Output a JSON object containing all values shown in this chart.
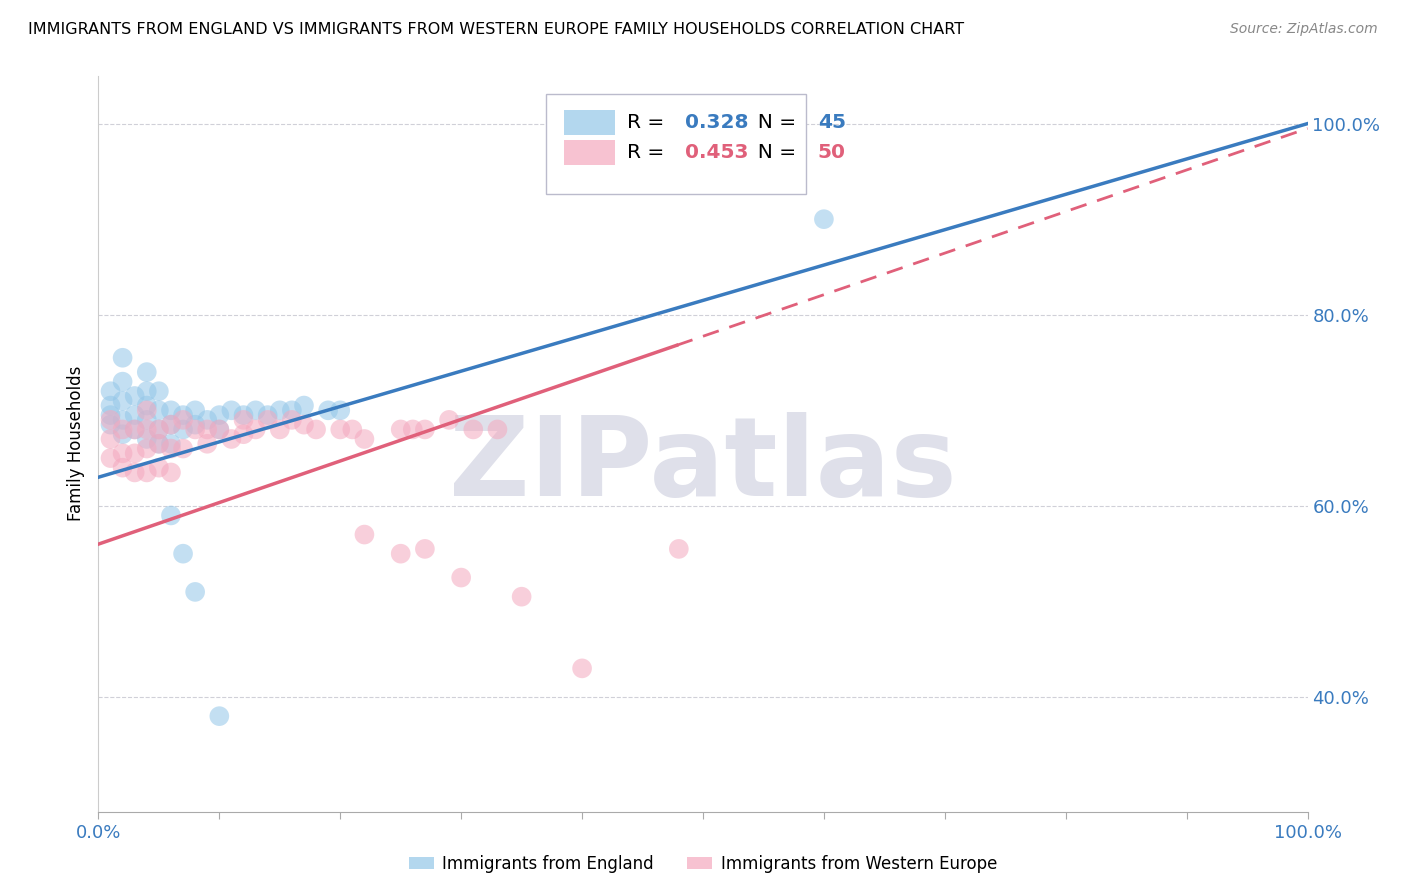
{
  "title": "IMMIGRANTS FROM ENGLAND VS IMMIGRANTS FROM WESTERN EUROPE FAMILY HOUSEHOLDS CORRELATION CHART",
  "source": "Source: ZipAtlas.com",
  "ylabel": "Family Households",
  "blue_R": 0.328,
  "blue_N": 45,
  "pink_R": 0.453,
  "pink_N": 50,
  "blue_color": "#93c6e8",
  "pink_color": "#f4a8be",
  "blue_line_color": "#3a7bbf",
  "pink_line_color": "#e0607a",
  "watermark_color": "#dfe0ea",
  "legend_label_blue": "Immigrants from England",
  "legend_label_pink": "Immigrants from Western Europe",
  "blue_scatter_x": [
    0.01,
    0.01,
    0.01,
    0.01,
    0.02,
    0.02,
    0.02,
    0.02,
    0.02,
    0.03,
    0.03,
    0.03,
    0.04,
    0.04,
    0.04,
    0.04,
    0.04,
    0.05,
    0.05,
    0.05,
    0.05,
    0.06,
    0.06,
    0.06,
    0.07,
    0.07,
    0.08,
    0.08,
    0.09,
    0.1,
    0.1,
    0.11,
    0.12,
    0.13,
    0.14,
    0.15,
    0.16,
    0.17,
    0.19,
    0.2,
    0.06,
    0.07,
    0.08,
    0.1,
    0.6
  ],
  "blue_scatter_y": [
    0.685,
    0.695,
    0.705,
    0.72,
    0.675,
    0.69,
    0.71,
    0.73,
    0.755,
    0.68,
    0.695,
    0.715,
    0.67,
    0.69,
    0.705,
    0.72,
    0.74,
    0.665,
    0.68,
    0.7,
    0.72,
    0.665,
    0.685,
    0.7,
    0.68,
    0.695,
    0.685,
    0.7,
    0.69,
    0.68,
    0.695,
    0.7,
    0.695,
    0.7,
    0.695,
    0.7,
    0.7,
    0.705,
    0.7,
    0.7,
    0.59,
    0.55,
    0.51,
    0.38,
    0.9
  ],
  "pink_scatter_x": [
    0.01,
    0.01,
    0.01,
    0.02,
    0.02,
    0.02,
    0.03,
    0.03,
    0.03,
    0.04,
    0.04,
    0.04,
    0.04,
    0.05,
    0.05,
    0.05,
    0.06,
    0.06,
    0.06,
    0.07,
    0.07,
    0.08,
    0.09,
    0.09,
    0.1,
    0.11,
    0.12,
    0.12,
    0.13,
    0.14,
    0.15,
    0.16,
    0.17,
    0.18,
    0.2,
    0.21,
    0.22,
    0.25,
    0.26,
    0.27,
    0.29,
    0.31,
    0.33,
    0.4,
    0.22,
    0.25,
    0.27,
    0.3,
    0.35,
    0.48
  ],
  "pink_scatter_y": [
    0.65,
    0.67,
    0.69,
    0.64,
    0.655,
    0.68,
    0.635,
    0.655,
    0.68,
    0.635,
    0.66,
    0.68,
    0.7,
    0.64,
    0.665,
    0.68,
    0.635,
    0.66,
    0.685,
    0.66,
    0.69,
    0.68,
    0.665,
    0.68,
    0.68,
    0.67,
    0.675,
    0.69,
    0.68,
    0.69,
    0.68,
    0.69,
    0.685,
    0.68,
    0.68,
    0.68,
    0.67,
    0.68,
    0.68,
    0.68,
    0.69,
    0.68,
    0.68,
    0.43,
    0.57,
    0.55,
    0.555,
    0.525,
    0.505,
    0.555
  ],
  "xlim": [
    0.0,
    1.0
  ],
  "ylim_min": 0.28,
  "ylim_max": 1.05,
  "ytick_positions": [
    0.4,
    0.6,
    0.8,
    1.0
  ],
  "ytick_labels": [
    "40.0%",
    "60.0%",
    "80.0%",
    "100.0%"
  ]
}
